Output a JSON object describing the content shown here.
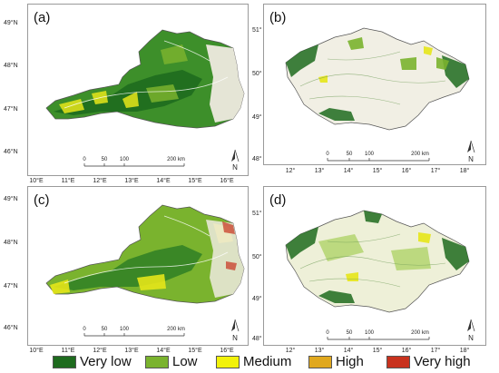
{
  "panels": {
    "a": {
      "label": "(a)"
    },
    "b": {
      "label": "(b)"
    },
    "c": {
      "label": "(c)"
    },
    "d": {
      "label": "(d)"
    }
  },
  "austria_axes": {
    "lat": [
      "49°N",
      "48°N",
      "47°N",
      "46°N"
    ],
    "lon": [
      "10°E",
      "11°E",
      "12°E",
      "13°E",
      "14°E",
      "15°E",
      "16°E"
    ]
  },
  "czech_axes": {
    "lat": [
      "51°",
      "50°",
      "49°",
      "48°"
    ],
    "lon": [
      "12°",
      "13°",
      "14°",
      "15°",
      "16°",
      "17°",
      "18°"
    ]
  },
  "scalebar": {
    "ticks": [
      "0",
      "50",
      "100",
      "200 km"
    ]
  },
  "north_arrow": {
    "label": "N"
  },
  "legend": [
    {
      "label": "Very low",
      "color": "#1e6b1e"
    },
    {
      "label": "Low",
      "color": "#7ab32e"
    },
    {
      "label": "Medium",
      "color": "#f2f20a"
    },
    {
      "label": "High",
      "color": "#e0a81e"
    },
    {
      "label": "Very high",
      "color": "#c8321e"
    }
  ]
}
